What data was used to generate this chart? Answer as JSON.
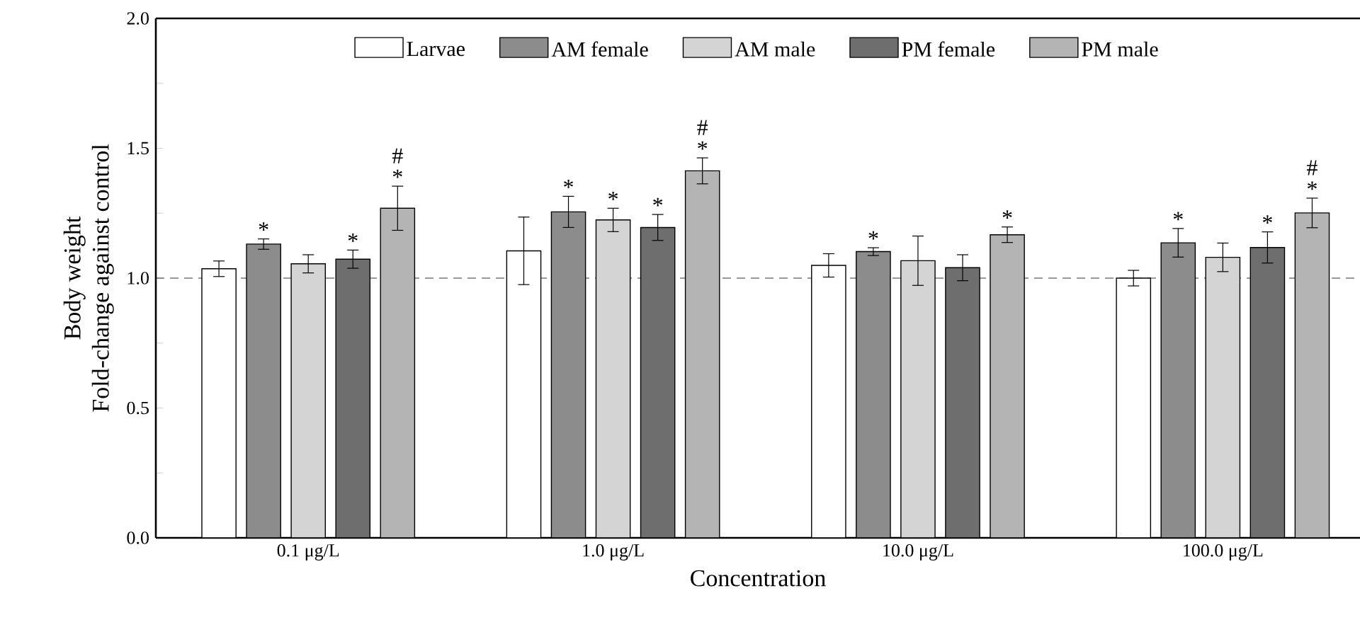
{
  "chart_data": {
    "type": "bar",
    "xlabel": "Concentration",
    "ylabel": "Body weight\nFold-change against control",
    "categories": [
      "0.1 μg/L",
      "1.0 μg/L",
      "10.0 μg/L",
      "100.0 μg/L"
    ],
    "series": [
      {
        "name": "Larvae",
        "color": "#ffffff",
        "values": [
          1.036,
          1.105,
          1.049,
          1.0
        ],
        "errors": [
          0.03,
          0.13,
          0.045,
          0.03
        ]
      },
      {
        "name": "AM female",
        "color": "#8c8c8c",
        "values": [
          1.131,
          1.255,
          1.102,
          1.136
        ],
        "errors": [
          0.02,
          0.06,
          0.015,
          0.055
        ],
        "value_labels": [
          "*",
          "*",
          "*",
          "*"
        ]
      },
      {
        "name": "AM male",
        "color": "#d4d4d4",
        "values": [
          1.055,
          1.224,
          1.067,
          1.08
        ],
        "errors": [
          0.035,
          0.045,
          0.095,
          0.055
        ],
        "value_labels": [
          null,
          "*",
          null,
          null
        ]
      },
      {
        "name": "PM female",
        "color": "#6e6e6e",
        "values": [
          1.073,
          1.195,
          1.04,
          1.118
        ],
        "errors": [
          0.035,
          0.05,
          0.05,
          0.06
        ],
        "value_labels": [
          "*",
          "*",
          null,
          "*"
        ]
      },
      {
        "name": "PM male",
        "color": "#b4b4b4",
        "values": [
          1.269,
          1.413,
          1.167,
          1.251
        ],
        "errors": [
          0.085,
          0.05,
          0.03,
          0.057
        ],
        "value_labels": [
          "# *",
          "# *",
          "*",
          "# *"
        ]
      }
    ],
    "ylim": [
      0,
      2.0
    ],
    "yticks": [
      {
        "value": 0,
        "label": "0.0"
      },
      {
        "value": 0.25,
        "label": null
      },
      {
        "value": 0.5,
        "label": "0.5"
      },
      {
        "value": 0.75,
        "label": null
      },
      {
        "value": 1.0,
        "label": "1.0"
      },
      {
        "value": 1.25,
        "label": null
      },
      {
        "value": 1.5,
        "label": "1.5"
      },
      {
        "value": 1.75,
        "label": null
      },
      {
        "value": 2.0,
        "label": "2.0"
      }
    ],
    "ref_lines": [
      {
        "axis": "y",
        "value": 1.0,
        "line_style": "dashed",
        "color": "#000000"
      }
    ],
    "legend": "top"
  }
}
